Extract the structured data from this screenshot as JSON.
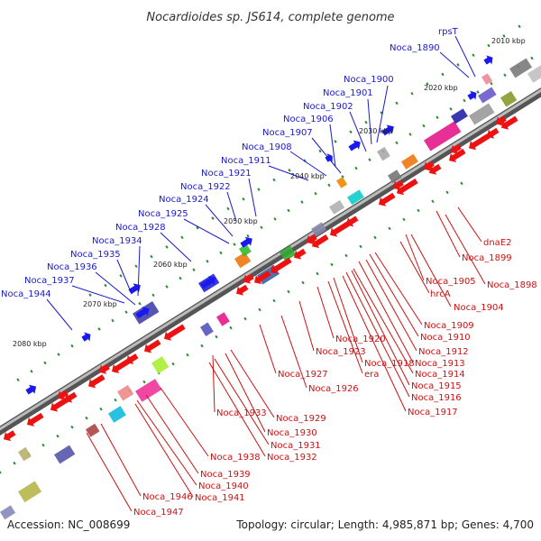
{
  "title": "Nocardioides sp. JS614, complete genome",
  "footer": {
    "accession": "Accession: NC_008699",
    "summary": "Topology: circular; Length: 4,985,871 bp; Genes: 4,700"
  },
  "colors": {
    "top_label": "#1a1acc",
    "bottom_label": "#cc1111",
    "forward_gene": "#1a1aee",
    "reverse_gene": "#ee1111",
    "backbone": "#777777",
    "tick": "#2a8a2a"
  },
  "kbp_labels": [
    "2010 kbp",
    "2020 kbp",
    "2030 kbp",
    "2040 kbp",
    "2050 kbp",
    "2060 kbp",
    "2070 kbp",
    "2080 kbp"
  ],
  "top_labels": [
    "rpsT",
    "Noca_1890",
    "Noca_1900",
    "Noca_1901",
    "Noca_1902",
    "Noca_1906",
    "Noca_1907",
    "Noca_1908",
    "Noca_1911",
    "Noca_1921",
    "Noca_1922",
    "Noca_1924",
    "Noca_1925",
    "Noca_1928",
    "Noca_1934",
    "Noca_1935",
    "Noca_1936",
    "Noca_1937",
    "Noca_1944"
  ],
  "bottom_labels": [
    "dnaE2",
    "Noca_1899",
    "Noca_1898",
    "Noca_1905",
    "hrcA",
    "Noca_1904",
    "Noca_1909",
    "Noca_1910",
    "Noca_1912",
    "Noca_1913",
    "Noca_1914",
    "Noca_1915",
    "Noca_1916",
    "Noca_1917",
    "Noca_1920",
    "Noca_1918",
    "era",
    "Noca_1923",
    "Noca_1927",
    "Noca_1926",
    "Noca_1933",
    "Noca_1929",
    "Noca_1930",
    "Noca_1931",
    "Noca_1932",
    "Noca_1938",
    "Noca_1939",
    "Noca_1940",
    "Noca_1941",
    "Noca_1946",
    "Noca_1947"
  ]
}
